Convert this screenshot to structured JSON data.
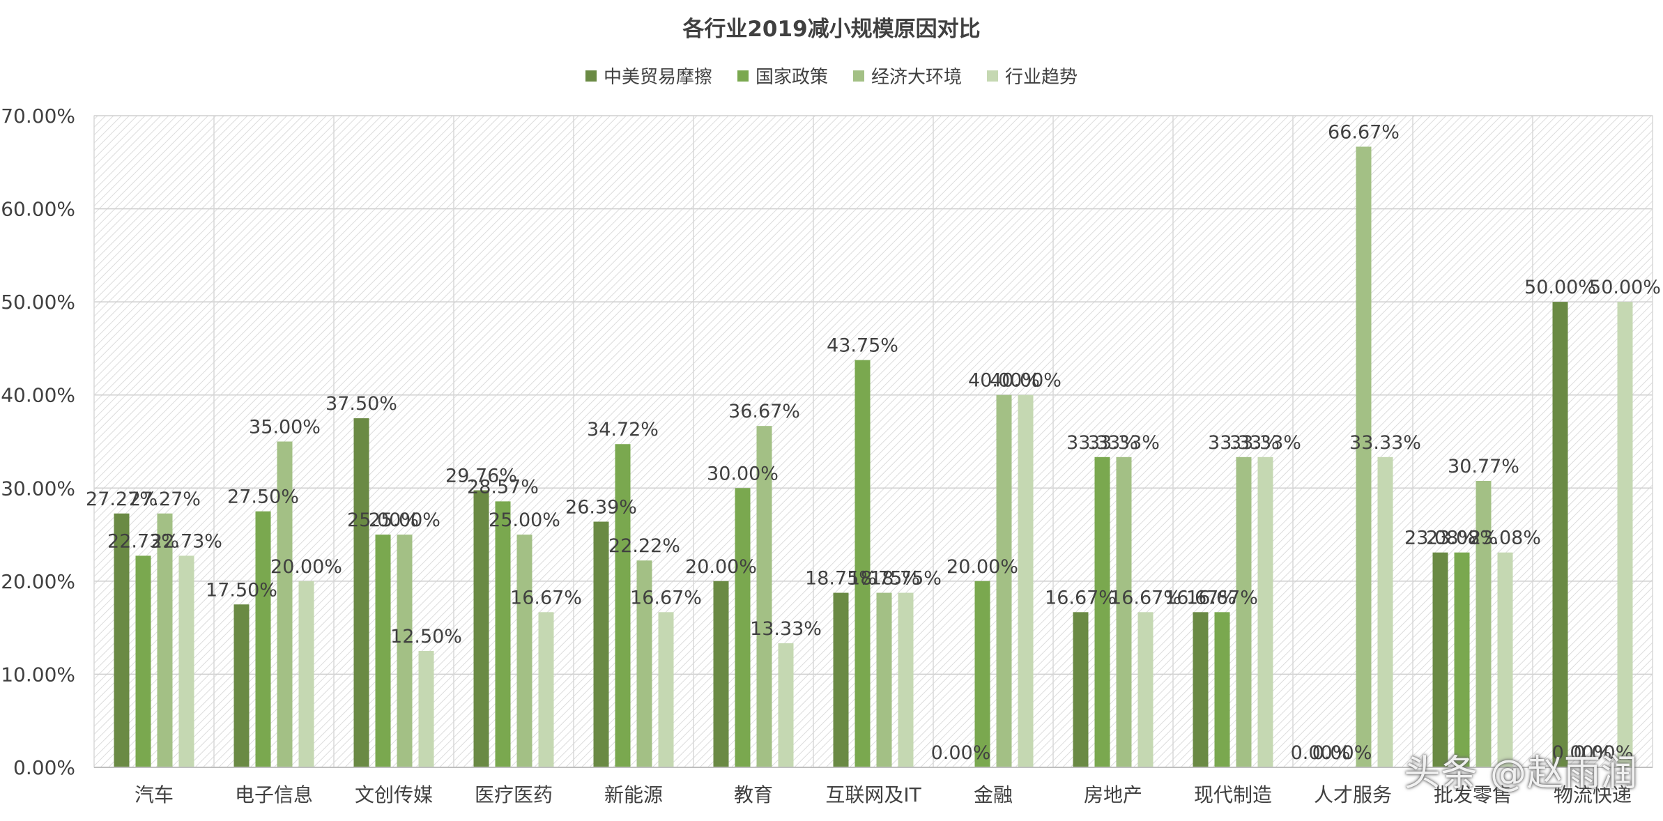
{
  "chart_data": {
    "type": "bar",
    "title": "各行业2019减小规模原因对比",
    "xlabel": "",
    "ylabel": "",
    "ylim": [
      0,
      70
    ],
    "yticks": [
      "0.00%",
      "10.00%",
      "20.00%",
      "30.00%",
      "40.00%",
      "50.00%",
      "60.00%",
      "70.00%"
    ],
    "legend_position": "top",
    "grid": true,
    "categories": [
      "汽车",
      "电子信息",
      "文创传媒",
      "医疗医药",
      "新能源",
      "教育",
      "互联网及IT",
      "金融",
      "房地产",
      "现代制造",
      "人才服务",
      "批发零售",
      "物流快递"
    ],
    "series": [
      {
        "name": "中美贸易摩擦",
        "color": "#6a8a44",
        "values": [
          27.27,
          17.5,
          37.5,
          29.76,
          26.39,
          20.0,
          18.75,
          0.0,
          16.67,
          16.67,
          0.0,
          23.08,
          50.0
        ],
        "labels": [
          "27.27%",
          "17.50%",
          "37.50%",
          "29.76%",
          "26.39%",
          "20.00%",
          "18.75%",
          "0.00%",
          "16.67%",
          "16.67%",
          "0.00%",
          "23.08%",
          "50.00%"
        ]
      },
      {
        "name": "国家政策",
        "color": "#7aa84f",
        "values": [
          22.73,
          27.5,
          25.0,
          28.57,
          34.72,
          30.0,
          43.75,
          20.0,
          33.33,
          16.67,
          0.0,
          23.08,
          0.0
        ],
        "labels": [
          "22.73%",
          "27.50%",
          "25.00%",
          "28.57%",
          "34.72%",
          "30.00%",
          "43.75%",
          "20.00%",
          "33.33%",
          "16.67%",
          "0.00%",
          "23.08%",
          "0.00%"
        ]
      },
      {
        "name": "经济大环境",
        "color": "#a3c085",
        "values": [
          27.27,
          35.0,
          25.0,
          25.0,
          22.22,
          36.67,
          18.75,
          40.0,
          33.33,
          33.33,
          66.67,
          30.77,
          0.0
        ],
        "labels": [
          "27.27%",
          "35.00%",
          "25.00%",
          "25.00%",
          "22.22%",
          "36.67%",
          "18.75%",
          "40.00%",
          "33.33%",
          "33.33%",
          "66.67%",
          "30.77%",
          "0.00%"
        ]
      },
      {
        "name": "行业趋势",
        "color": "#c5d8b2",
        "values": [
          22.73,
          20.0,
          12.5,
          16.67,
          16.67,
          13.33,
          18.75,
          40.0,
          16.67,
          33.33,
          33.33,
          23.08,
          50.0
        ],
        "labels": [
          "22.73%",
          "20.00%",
          "12.50%",
          "16.67%",
          "16.67%",
          "13.33%",
          "18.75%",
          "40.00%",
          "16.67%",
          "33.33%",
          "33.33%",
          "23.08%",
          "50.00%"
        ]
      }
    ]
  },
  "watermark": "头条 @赵雨润"
}
